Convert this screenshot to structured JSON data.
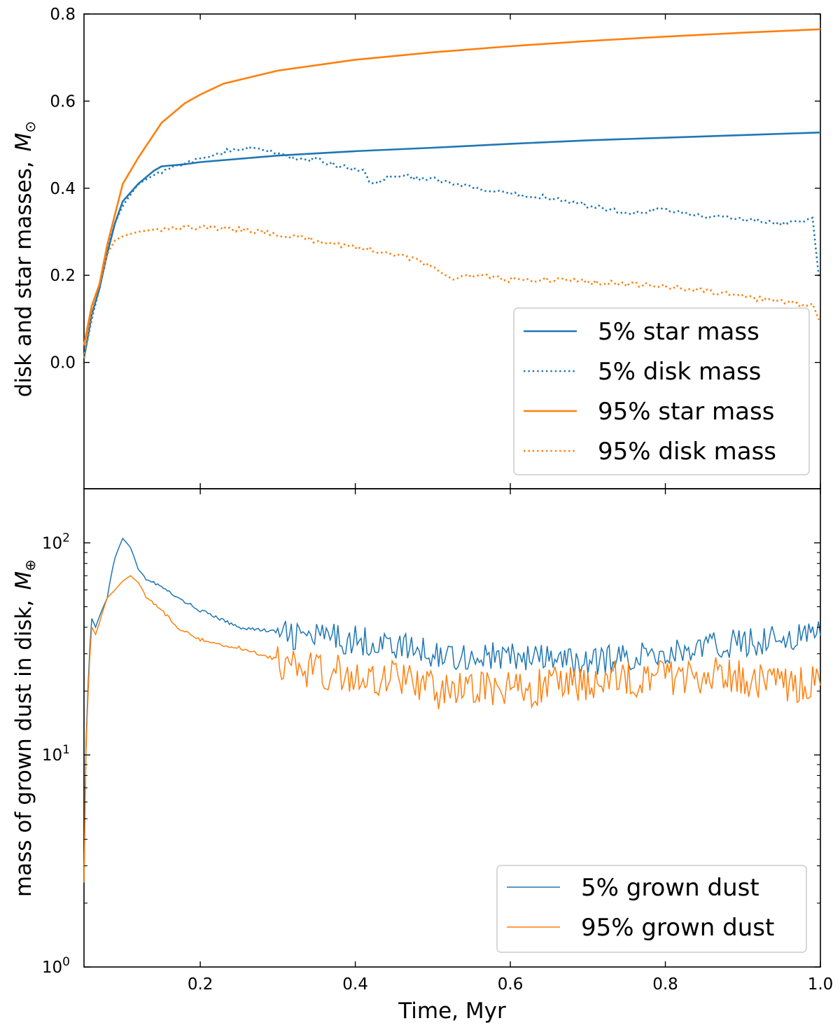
{
  "figure": {
    "xlabel": "Time, Myr",
    "xlim": [
      0.05,
      1.0
    ],
    "xticks": [
      0.2,
      0.4,
      0.6,
      0.8,
      1.0
    ],
    "xtick_labels": [
      "0.2",
      "0.4",
      "0.6",
      "0.8",
      "1.0"
    ]
  },
  "colors": {
    "blue": "#1f77b4",
    "orange": "#ff7f0e"
  },
  "chart_data": [
    {
      "type": "line",
      "panel": "top",
      "title": "",
      "xlabel": "Time, Myr",
      "ylabel": "disk and star masses,",
      "ylabel_unit": "M",
      "ylabel_unit_sub": "⊙",
      "ylim": [
        -0.29,
        0.8
      ],
      "yticks": [
        0.0,
        0.2,
        0.4,
        0.6,
        0.8
      ],
      "ytick_labels": [
        "0.0",
        "0.2",
        "0.4",
        "0.6",
        "0.8"
      ],
      "legend_position": "lower-right",
      "series": [
        {
          "name": "5% star mass",
          "color": "#1f77b4",
          "style": "solid",
          "x": [
            0.05,
            0.06,
            0.07,
            0.08,
            0.09,
            0.1,
            0.12,
            0.14,
            0.15,
            0.16,
            0.18,
            0.2,
            0.3,
            0.4,
            0.5,
            0.6,
            0.7,
            0.8,
            0.9,
            1.0
          ],
          "y": [
            0.01,
            0.11,
            0.17,
            0.25,
            0.32,
            0.37,
            0.41,
            0.44,
            0.45,
            0.452,
            0.455,
            0.46,
            0.475,
            0.485,
            0.493,
            0.502,
            0.51,
            0.516,
            0.522,
            0.528
          ]
        },
        {
          "name": "5% disk mass",
          "color": "#1f77b4",
          "style": "dotted",
          "x": [
            0.05,
            0.06,
            0.07,
            0.08,
            0.09,
            0.1,
            0.12,
            0.14,
            0.16,
            0.18,
            0.2,
            0.22,
            0.25,
            0.28,
            0.3,
            0.32,
            0.35,
            0.38,
            0.41,
            0.42,
            0.45,
            0.5,
            0.55,
            0.6,
            0.65,
            0.7,
            0.75,
            0.8,
            0.85,
            0.9,
            0.95,
            0.98,
            0.99,
            1.0
          ],
          "y": [
            0.01,
            0.1,
            0.17,
            0.26,
            0.32,
            0.36,
            0.41,
            0.43,
            0.45,
            0.455,
            0.465,
            0.48,
            0.49,
            0.49,
            0.48,
            0.47,
            0.465,
            0.45,
            0.44,
            0.41,
            0.43,
            0.42,
            0.4,
            0.385,
            0.38,
            0.36,
            0.345,
            0.35,
            0.335,
            0.33,
            0.32,
            0.32,
            0.33,
            0.17
          ]
        },
        {
          "name": "95% star mass",
          "color": "#ff7f0e",
          "style": "solid",
          "x": [
            0.05,
            0.06,
            0.07,
            0.08,
            0.09,
            0.1,
            0.12,
            0.15,
            0.18,
            0.2,
            0.23,
            0.3,
            0.4,
            0.5,
            0.6,
            0.7,
            0.8,
            0.9,
            1.0
          ],
          "y": [
            0.04,
            0.13,
            0.18,
            0.27,
            0.34,
            0.41,
            0.47,
            0.55,
            0.595,
            0.615,
            0.64,
            0.67,
            0.695,
            0.712,
            0.726,
            0.738,
            0.748,
            0.757,
            0.765
          ]
        },
        {
          "name": "95% disk mass",
          "color": "#ff7f0e",
          "style": "dotted",
          "x": [
            0.05,
            0.06,
            0.07,
            0.08,
            0.09,
            0.1,
            0.12,
            0.14,
            0.16,
            0.18,
            0.2,
            0.25,
            0.3,
            0.35,
            0.4,
            0.45,
            0.48,
            0.5,
            0.52,
            0.55,
            0.58,
            0.6,
            0.65,
            0.7,
            0.75,
            0.8,
            0.85,
            0.9,
            0.95,
            0.98,
            0.99,
            1.0
          ],
          "y": [
            0.01,
            0.12,
            0.18,
            0.25,
            0.28,
            0.29,
            0.3,
            0.305,
            0.31,
            0.31,
            0.31,
            0.305,
            0.295,
            0.28,
            0.265,
            0.25,
            0.235,
            0.215,
            0.195,
            0.2,
            0.195,
            0.19,
            0.19,
            0.185,
            0.18,
            0.175,
            0.165,
            0.15,
            0.14,
            0.13,
            0.135,
            0.09
          ]
        }
      ]
    },
    {
      "type": "line",
      "panel": "bottom",
      "title": "",
      "xlabel": "Time, Myr",
      "ylabel": "mass of grown dust in disk,",
      "ylabel_unit": "M",
      "ylabel_unit_sub": "⊕",
      "yscale": "log",
      "ylim": [
        1,
        180
      ],
      "yticks": [
        1,
        10,
        100
      ],
      "ytick_labels": [
        {
          "base": "10",
          "exp": "0"
        },
        {
          "base": "10",
          "exp": "1"
        },
        {
          "base": "10",
          "exp": "2"
        }
      ],
      "legend_position": "lower-right",
      "series": [
        {
          "name": "5% grown dust",
          "color": "#1f77b4",
          "style": "solid",
          "noise": 0.14,
          "x": [
            0.05,
            0.055,
            0.06,
            0.065,
            0.07,
            0.08,
            0.09,
            0.1,
            0.11,
            0.12,
            0.13,
            0.15,
            0.17,
            0.2,
            0.23,
            0.25,
            0.3,
            0.35,
            0.4,
            0.45,
            0.5,
            0.55,
            0.6,
            0.65,
            0.7,
            0.75,
            0.8,
            0.85,
            0.9,
            0.95,
            1.0
          ],
          "y": [
            2.5,
            20,
            44,
            40,
            45,
            55,
            85,
            105,
            95,
            75,
            68,
            62,
            55,
            48,
            43,
            40,
            38,
            37,
            36,
            34,
            31,
            30,
            30,
            29,
            28,
            30,
            31,
            33,
            35,
            37,
            38
          ]
        },
        {
          "name": "95% grown dust",
          "color": "#ff7f0e",
          "style": "solid",
          "noise": 0.18,
          "x": [
            0.05,
            0.055,
            0.06,
            0.065,
            0.07,
            0.08,
            0.09,
            0.1,
            0.11,
            0.12,
            0.13,
            0.15,
            0.17,
            0.2,
            0.23,
            0.25,
            0.3,
            0.35,
            0.4,
            0.45,
            0.5,
            0.55,
            0.6,
            0.65,
            0.7,
            0.75,
            0.8,
            0.85,
            0.9,
            0.95,
            1.0
          ],
          "y": [
            2.5,
            18,
            40,
            37,
            42,
            55,
            60,
            66,
            70,
            65,
            56,
            48,
            40,
            35,
            33,
            32,
            28,
            26,
            25,
            24,
            21,
            21,
            21,
            22,
            23,
            24,
            24,
            25,
            24,
            23,
            22
          ]
        }
      ]
    }
  ]
}
